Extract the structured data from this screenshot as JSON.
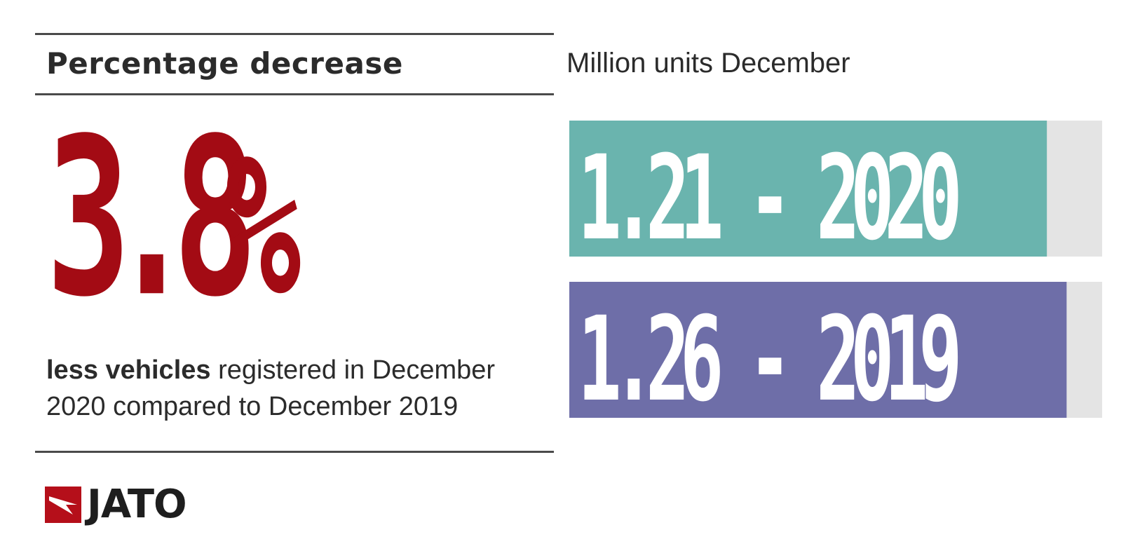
{
  "header": {
    "title": "Percentage decrease"
  },
  "stat": {
    "value": "3.8",
    "unit": "%",
    "description_bold": "less vehicles",
    "description_rest": " registered in December 2020 compared to December 2019"
  },
  "brand": {
    "name": "JATO"
  },
  "colors": {
    "accent_red": "#a30b14",
    "bar_2020": "#6ab4ae",
    "bar_2019": "#6e6ea8",
    "bar_track": "#e4e4e4"
  },
  "chart_data": {
    "type": "bar",
    "orientation": "horizontal",
    "title": "Million units December",
    "categories": [
      "2020",
      "2019"
    ],
    "values": [
      1.21,
      1.26
    ],
    "labels": [
      "1.21 - 2020",
      "1.26 - 2019"
    ],
    "xlim": [
      0,
      1.35
    ],
    "grid": false,
    "legend": "none"
  }
}
